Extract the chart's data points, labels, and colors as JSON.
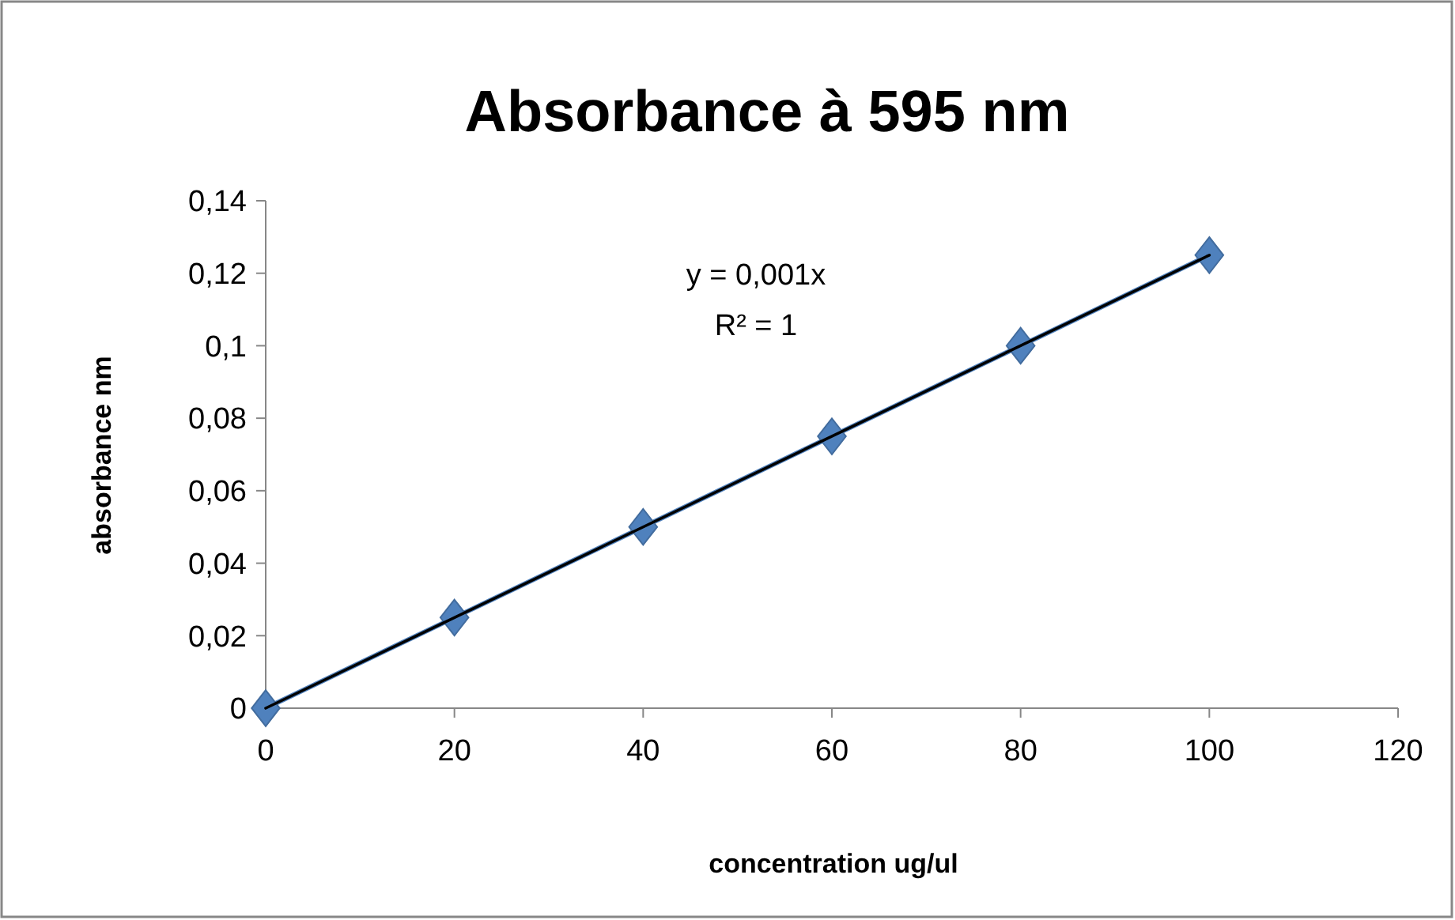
{
  "chart_data": {
    "type": "line",
    "title": "Absorbance à 595 nm",
    "xlabel": "concentration ug/ul",
    "ylabel": "absorbance nm",
    "x": [
      0,
      20,
      40,
      60,
      80,
      100
    ],
    "series": [
      {
        "color": "#4f81bd",
        "values": [
          0,
          0.025,
          0.05,
          0.075,
          0.1,
          0.125
        ],
        "marker": "diamond"
      },
      {
        "type": "line",
        "color": "#000000",
        "x": [
          0,
          100
        ],
        "values": [
          0,
          0.125
        ],
        "marker": "none"
      }
    ],
    "xlim": [
      0,
      120
    ],
    "xticks": [
      0,
      20,
      40,
      60,
      80,
      100,
      120
    ],
    "ylim": [
      0,
      0.14
    ],
    "yticks": [
      0,
      {
        "value": 0.02,
        "label": "0,02"
      },
      {
        "value": 0.04,
        "label": "0,04"
      },
      {
        "value": 0.06,
        "label": "0,06"
      },
      {
        "value": 0.08,
        "label": "0,08"
      },
      {
        "value": 0.1,
        "label": "0,1"
      },
      {
        "value": 0.12,
        "label": "0,12"
      },
      {
        "value": 0.14,
        "label": "0,14"
      }
    ],
    "annotations": [
      "y = 0,001x",
      "R² = 1"
    ],
    "grid": false
  }
}
